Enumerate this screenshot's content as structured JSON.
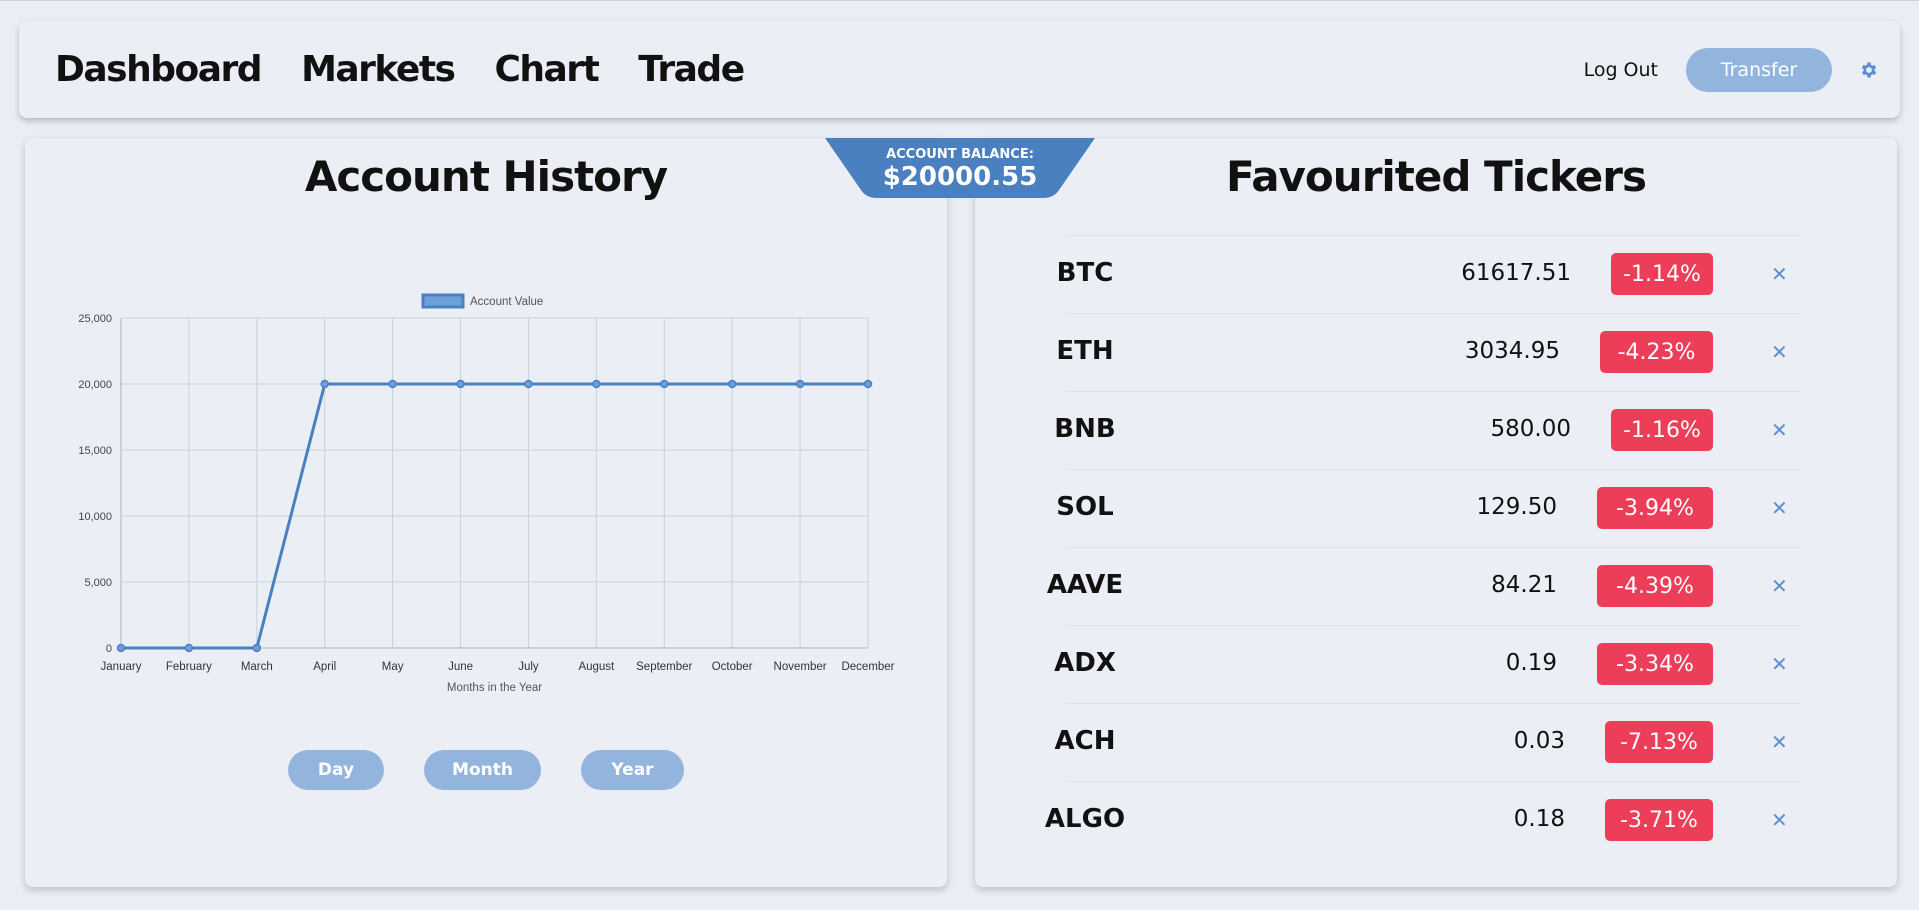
{
  "nav": {
    "links": [
      "Dashboard",
      "Markets",
      "Chart",
      "Trade"
    ],
    "logout_label": "Log Out",
    "transfer_label": "Transfer",
    "settings_icon": "gear-icon"
  },
  "account_balance": {
    "label": "ACCOUNT BALANCE:",
    "value": "$20000.55"
  },
  "account_history": {
    "title": "Account History",
    "range_buttons": [
      "Day",
      "Month",
      "Year"
    ]
  },
  "chart_data": {
    "type": "line",
    "title": "",
    "legend": "top",
    "xlabel": "Months in the Year",
    "ylabel": "",
    "ylim": [
      0,
      25000
    ],
    "yticks": [
      "0",
      "5,000",
      "10,000",
      "15,000",
      "20,000",
      "25,000"
    ],
    "grid": true,
    "categories": [
      "January",
      "February",
      "March",
      "April",
      "May",
      "June",
      "July",
      "August",
      "September",
      "October",
      "November",
      "December"
    ],
    "series": [
      {
        "name": "Account Value",
        "values": [
          0,
          0,
          0,
          20000,
          20000,
          20000,
          20000,
          20000,
          20000,
          20000,
          20000,
          20000
        ]
      }
    ],
    "colors": {
      "line": "#4a80c0",
      "fill": "#6c9fdc"
    }
  },
  "favourites": {
    "title": "Favourited Tickers",
    "remove_icon": "close-icon",
    "tickers": [
      {
        "symbol": "BTC",
        "price": "61617.51",
        "change": "-1.14%"
      },
      {
        "symbol": "ETH",
        "price": "3034.95",
        "change": "-4.23%"
      },
      {
        "symbol": "BNB",
        "price": "580.00",
        "change": "-1.16%"
      },
      {
        "symbol": "SOL",
        "price": "129.50",
        "change": "-3.94%"
      },
      {
        "symbol": "AAVE",
        "price": "84.21",
        "change": "-4.39%"
      },
      {
        "symbol": "ADX",
        "price": "0.19",
        "change": "-3.34%"
      },
      {
        "symbol": "ACH",
        "price": "0.03",
        "change": "-7.13%"
      },
      {
        "symbol": "ALGO",
        "price": "0.18",
        "change": "-3.71%"
      }
    ]
  },
  "colors": {
    "accent": "#4a80c0",
    "button": "#93b4dd",
    "negative": "#ed3e59",
    "background": "#e9eef5"
  }
}
